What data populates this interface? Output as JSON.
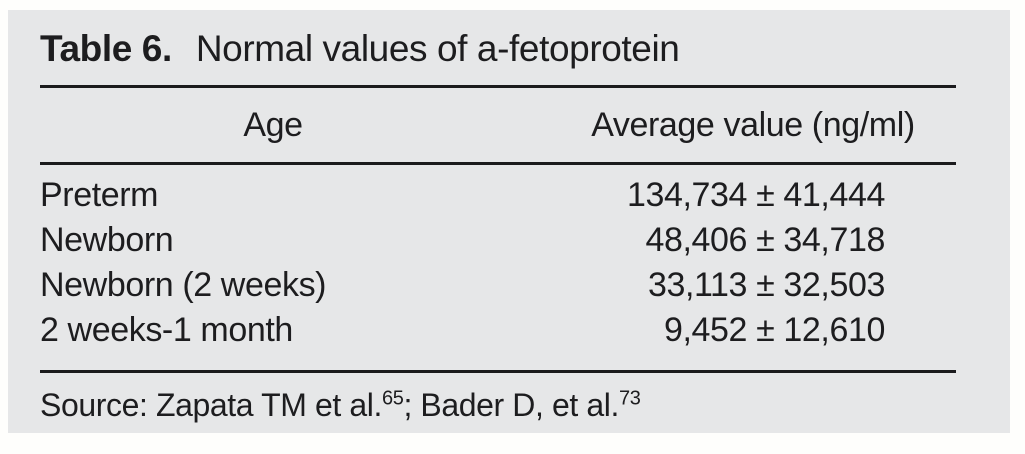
{
  "panel": {
    "background": "#e6e7e8",
    "rule_color": "#1b1b1d",
    "text_color": "#1d1d1f"
  },
  "title": {
    "label": "Table 6.",
    "text": "Normal values of a-fetoprotein"
  },
  "table": {
    "headers": {
      "age": "Age",
      "value": "Average value (ng/ml)"
    },
    "rows": [
      {
        "age": "Preterm",
        "value": "134,734 ± 41,444"
      },
      {
        "age": "Newborn",
        "value": "48,406 ± 34,718"
      },
      {
        "age": "Newborn (2 weeks)",
        "value": "33,113 ± 32,503"
      },
      {
        "age": "2 weeks-1 month",
        "value": "9,452 ± 12,610"
      }
    ]
  },
  "source": {
    "prefix": "Source: Zapata TM et al.",
    "ref1": "65",
    "middle": "; Bader D, et al.",
    "ref2": "73"
  }
}
